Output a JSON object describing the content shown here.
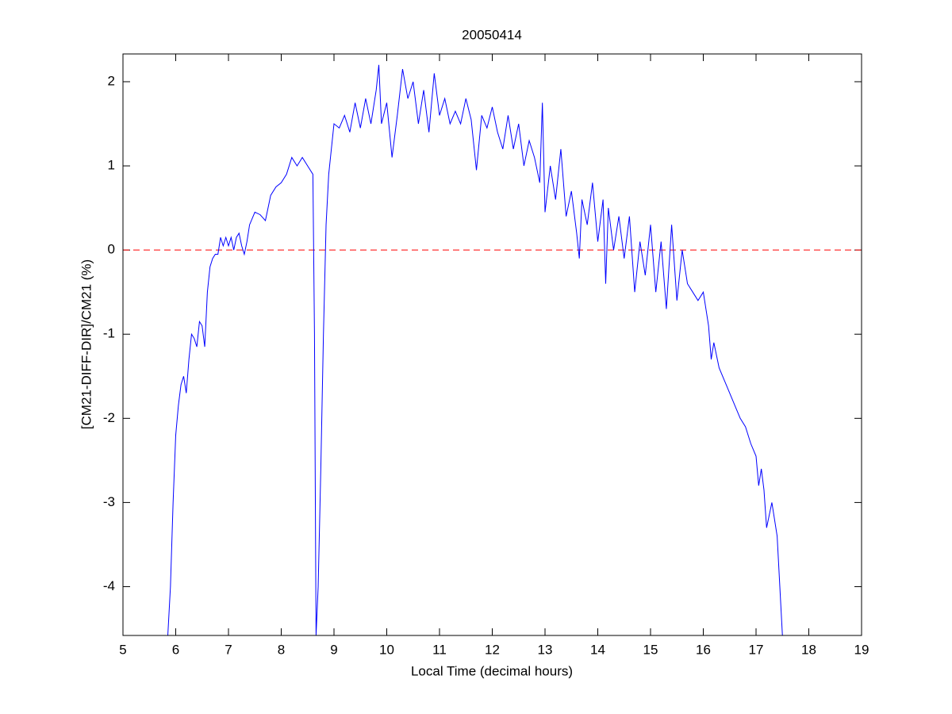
{
  "chart_data": {
    "type": "line",
    "title": "20050414",
    "x_label": "Local Time (decimal hours)",
    "y_label": "[CM21-DIFF-DIR]/CM21 (%)",
    "xlim": [
      5,
      19
    ],
    "ylim": [
      -4.58,
      2.33
    ],
    "xticks": [
      5,
      6,
      7,
      8,
      9,
      10,
      11,
      12,
      13,
      14,
      15,
      16,
      17,
      18,
      19
    ],
    "yticks": [
      -4,
      -3,
      -2,
      -1,
      0,
      1,
      2
    ],
    "grid": false,
    "reference_line": {
      "value": 0,
      "color": "#ff0000"
    },
    "x": [
      5.85,
      5.9,
      5.95,
      6.0,
      6.05,
      6.1,
      6.15,
      6.2,
      6.25,
      6.3,
      6.35,
      6.4,
      6.45,
      6.5,
      6.55,
      6.6,
      6.65,
      6.7,
      6.75,
      6.8,
      6.85,
      6.9,
      6.95,
      7.0,
      7.05,
      7.1,
      7.15,
      7.2,
      7.25,
      7.3,
      7.35,
      7.4,
      7.5,
      7.6,
      7.7,
      7.8,
      7.9,
      8.0,
      8.1,
      8.2,
      8.3,
      8.4,
      8.5,
      8.6,
      8.63,
      8.66,
      8.7,
      8.75,
      8.8,
      8.85,
      8.9,
      8.95,
      9.0,
      9.1,
      9.2,
      9.3,
      9.4,
      9.5,
      9.6,
      9.7,
      9.8,
      9.85,
      9.9,
      10.0,
      10.1,
      10.2,
      10.3,
      10.4,
      10.5,
      10.6,
      10.7,
      10.8,
      10.9,
      11.0,
      11.1,
      11.2,
      11.3,
      11.4,
      11.5,
      11.6,
      11.7,
      11.8,
      11.9,
      12.0,
      12.1,
      12.2,
      12.3,
      12.4,
      12.5,
      12.6,
      12.7,
      12.8,
      12.9,
      12.95,
      13.0,
      13.1,
      13.2,
      13.3,
      13.4,
      13.5,
      13.6,
      13.65,
      13.7,
      13.8,
      13.9,
      14.0,
      14.1,
      14.15,
      14.2,
      14.3,
      14.4,
      14.5,
      14.6,
      14.7,
      14.8,
      14.9,
      15.0,
      15.1,
      15.2,
      15.3,
      15.4,
      15.5,
      15.6,
      15.7,
      15.8,
      15.9,
      16.0,
      16.05,
      16.1,
      16.15,
      16.2,
      16.3,
      16.4,
      16.5,
      16.6,
      16.7,
      16.8,
      16.9,
      17.0,
      17.05,
      17.1,
      17.15,
      17.2,
      17.3,
      17.4,
      17.5
    ],
    "series": [
      {
        "name": "CM21",
        "color": "#0000ff",
        "values": [
          -4.58,
          -4.0,
          -3.0,
          -2.2,
          -1.85,
          -1.6,
          -1.5,
          -1.7,
          -1.3,
          -1.0,
          -1.05,
          -1.15,
          -0.85,
          -0.9,
          -1.15,
          -0.5,
          -0.2,
          -0.1,
          -0.05,
          -0.05,
          0.15,
          0.05,
          0.15,
          0.05,
          0.15,
          0.0,
          0.15,
          0.2,
          0.05,
          -0.05,
          0.1,
          0.3,
          0.45,
          0.42,
          0.35,
          0.65,
          0.75,
          0.8,
          0.9,
          1.1,
          1.0,
          1.1,
          1.0,
          0.9,
          -1.0,
          -4.58,
          -4.0,
          -2.6,
          -1.0,
          0.3,
          0.9,
          1.2,
          1.5,
          1.45,
          1.6,
          1.4,
          1.75,
          1.45,
          1.8,
          1.5,
          1.9,
          2.2,
          1.5,
          1.75,
          1.1,
          1.6,
          2.15,
          1.8,
          2.0,
          1.5,
          1.9,
          1.4,
          2.1,
          1.6,
          1.8,
          1.5,
          1.65,
          1.5,
          1.8,
          1.55,
          0.95,
          1.6,
          1.45,
          1.7,
          1.4,
          1.2,
          1.6,
          1.2,
          1.5,
          1.0,
          1.3,
          1.1,
          0.8,
          1.75,
          0.45,
          1.0,
          0.6,
          1.2,
          0.4,
          0.7,
          0.2,
          -0.1,
          0.6,
          0.3,
          0.8,
          0.1,
          0.6,
          -0.4,
          0.5,
          0.0,
          0.4,
          -0.1,
          0.4,
          -0.5,
          0.1,
          -0.3,
          0.3,
          -0.5,
          0.1,
          -0.7,
          0.3,
          -0.6,
          0.0,
          -0.4,
          -0.5,
          -0.6,
          -0.5,
          -0.7,
          -0.9,
          -1.3,
          -1.1,
          -1.4,
          -1.55,
          -1.7,
          -1.85,
          -2.0,
          -2.1,
          -2.3,
          -2.45,
          -2.8,
          -2.6,
          -2.85,
          -3.3,
          -3.0,
          -3.4,
          -4.58
        ]
      }
    ]
  }
}
